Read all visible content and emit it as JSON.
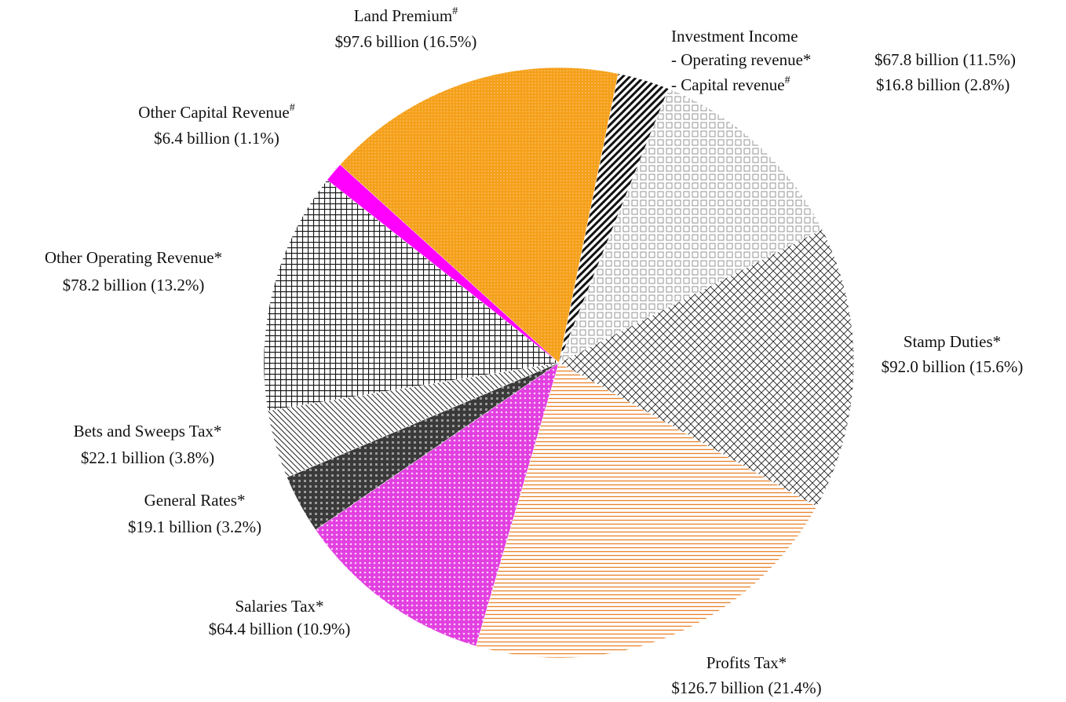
{
  "chart_data": {
    "type": "pie",
    "annotations": [
      "Investment Income"
    ],
    "categories": [
      "- Capital revenue",
      "- Operating revenue",
      "Stamp Duties",
      "Profits Tax",
      "Salaries Tax",
      "General Rates",
      "Bets and Sweeps Tax",
      "Other Operating Revenue",
      "Other Capital Revenue",
      "Land Premium"
    ],
    "markers": [
      "#",
      "*",
      "*",
      "*",
      "*",
      "*",
      "*",
      "*",
      "#",
      "#"
    ],
    "values": [
      16.8,
      67.8,
      92.0,
      126.7,
      64.4,
      19.1,
      22.1,
      78.2,
      6.4,
      97.6
    ],
    "value_labels": [
      "$16.8 billion (2.8%)",
      "$67.8 billion (11.5%)",
      "$92.0 billion (15.6%)",
      "$126.7 billion (21.4%)",
      "$64.4 billion (10.9%)",
      "$19.1 billion (3.2%)",
      "$22.1 billion (3.8%)",
      "$78.2 billion (13.2%)",
      "$6.4 billion (1.1%)",
      "$97.6 billion (16.5%)"
    ],
    "colors": [
      "#111111",
      "#8a8a8a",
      "#222222",
      "#e8822a",
      "#e23fe0",
      "#3a3a3a",
      "#222222",
      "#111111",
      "#ff00ff",
      "#f5a01a"
    ],
    "patterns": [
      "diagonal",
      "lightgrid",
      "crosshatch",
      "horizontal",
      "dots",
      "darkdots",
      "finediagonal",
      "grid",
      "solid",
      "texture"
    ],
    "start_angle": 11.6
  }
}
